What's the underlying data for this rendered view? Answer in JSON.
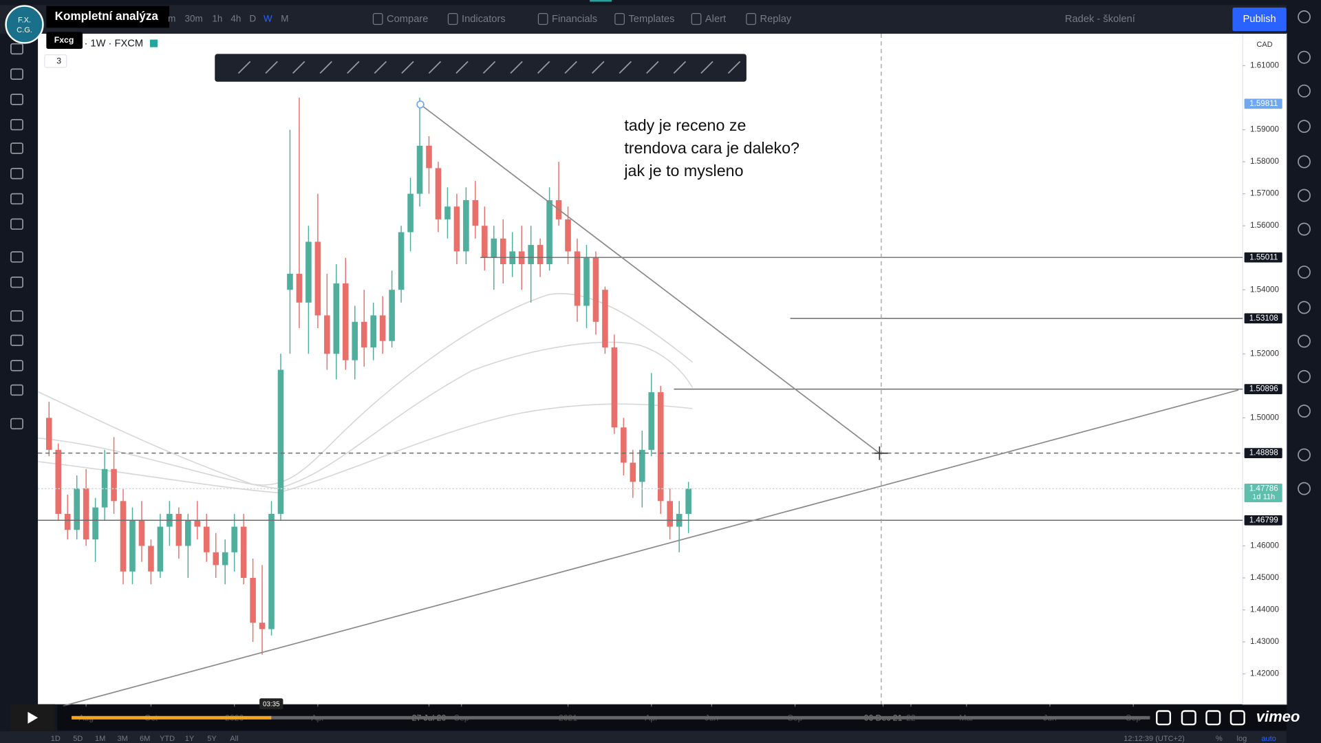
{
  "video": {
    "title": "Kompletní analýza",
    "channel": "Fxcg",
    "logo": [
      "F.X.",
      "C.G."
    ],
    "time": "03:35",
    "brand": "vimeo"
  },
  "toolbar": {
    "intervals": [
      "m",
      "30m",
      "1h",
      "4h",
      "D",
      "W",
      "M"
    ],
    "buttons": [
      "Compare",
      "Indicators",
      "Financials",
      "Templates",
      "Alert",
      "Replay"
    ],
    "layout": "Radek - školení",
    "publish": "Publish"
  },
  "legend": {
    "symbol": "· 1W · FXCM",
    "count": "3"
  },
  "annotation": [
    "tady je receno ze",
    "trendova cara je daleko?",
    "jak je to mysleno"
  ],
  "chart_data": {
    "type": "candlestick",
    "currency": "CAD",
    "open": [
      1.5,
      1.49,
      1.47,
      1.465,
      1.478,
      1.462,
      1.472,
      1.484,
      1.474,
      1.452,
      1.468,
      1.46,
      1.452,
      1.466,
      1.47,
      1.46,
      1.468,
      1.466,
      1.458,
      1.454,
      1.458,
      1.466,
      1.45,
      1.436,
      1.434,
      1.47,
      1.54,
      1.545,
      1.536,
      1.555,
      1.532,
      1.52,
      1.542,
      1.518,
      1.53,
      1.522,
      1.532,
      1.524,
      1.54,
      1.558,
      1.57,
      1.585,
      1.578,
      1.562,
      1.566,
      1.552,
      1.568,
      1.56,
      1.55,
      1.556,
      1.548,
      1.552,
      1.548,
      1.554,
      1.548,
      1.568,
      1.562,
      1.552,
      1.535,
      1.55,
      1.54,
      1.522,
      1.497,
      1.486,
      1.48,
      1.49,
      1.508,
      1.474,
      1.466,
      1.47
    ],
    "high": [
      1.505,
      1.492,
      1.476,
      1.482,
      1.484,
      1.475,
      1.49,
      1.494,
      1.478,
      1.472,
      1.474,
      1.462,
      1.47,
      1.474,
      1.472,
      1.47,
      1.474,
      1.47,
      1.464,
      1.462,
      1.47,
      1.47,
      1.456,
      1.454,
      1.474,
      1.52,
      1.59,
      1.6,
      1.56,
      1.57,
      1.545,
      1.548,
      1.55,
      1.535,
      1.54,
      1.536,
      1.538,
      1.546,
      1.56,
      1.575,
      1.6,
      1.588,
      1.58,
      1.572,
      1.57,
      1.572,
      1.574,
      1.566,
      1.56,
      1.562,
      1.558,
      1.56,
      1.56,
      1.556,
      1.572,
      1.58,
      1.566,
      1.556,
      1.554,
      1.552,
      1.541,
      1.526,
      1.5,
      1.49,
      1.496,
      1.514,
      1.51,
      1.478,
      1.474,
      1.48
    ],
    "low": [
      1.488,
      1.468,
      1.462,
      1.462,
      1.46,
      1.455,
      1.468,
      1.47,
      1.448,
      1.448,
      1.455,
      1.448,
      1.45,
      1.46,
      1.456,
      1.45,
      1.462,
      1.455,
      1.45,
      1.448,
      1.452,
      1.448,
      1.43,
      1.426,
      1.432,
      1.468,
      1.52,
      1.528,
      1.52,
      1.528,
      1.515,
      1.512,
      1.515,
      1.512,
      1.516,
      1.518,
      1.52,
      1.522,
      1.536,
      1.552,
      1.566,
      1.57,
      1.558,
      1.556,
      1.548,
      1.548,
      1.556,
      1.546,
      1.54,
      1.542,
      1.544,
      1.54,
      1.536,
      1.544,
      1.546,
      1.56,
      1.548,
      1.53,
      1.528,
      1.526,
      1.52,
      1.495,
      1.482,
      1.475,
      1.472,
      1.488,
      1.47,
      1.462,
      1.458,
      1.464
    ],
    "close": [
      1.49,
      1.47,
      1.465,
      1.478,
      1.462,
      1.472,
      1.484,
      1.474,
      1.452,
      1.468,
      1.46,
      1.452,
      1.466,
      1.47,
      1.46,
      1.468,
      1.466,
      1.458,
      1.454,
      1.458,
      1.466,
      1.45,
      1.436,
      1.434,
      1.47,
      1.515,
      1.545,
      1.536,
      1.555,
      1.532,
      1.52,
      1.542,
      1.518,
      1.53,
      1.522,
      1.532,
      1.524,
      1.54,
      1.558,
      1.57,
      1.585,
      1.578,
      1.562,
      1.566,
      1.552,
      1.568,
      1.56,
      1.55,
      1.556,
      1.548,
      1.552,
      1.548,
      1.554,
      1.548,
      1.568,
      1.562,
      1.552,
      1.535,
      1.55,
      1.53,
      1.522,
      1.497,
      1.486,
      1.48,
      1.49,
      1.508,
      1.474,
      1.466,
      1.47,
      1.4779
    ],
    "up_color": "#4fae9c",
    "down_color": "#e9706a",
    "xlim": [
      -1.2,
      128.8
    ],
    "ylim": [
      1.41,
      1.62
    ],
    "xticks": [
      {
        "value": 4,
        "label": "Aug"
      },
      {
        "value": 11,
        "label": "Oct"
      },
      {
        "value": 20,
        "label": "2020"
      },
      {
        "value": 29,
        "label": "Apr"
      },
      {
        "value": 41,
        "label": "27 Jul 20"
      },
      {
        "value": 44.5,
        "label": "Sep"
      },
      {
        "value": 56,
        "label": "2021"
      },
      {
        "value": 65,
        "label": "Apr"
      },
      {
        "value": 71.5,
        "label": "Jun"
      },
      {
        "value": 80.5,
        "label": "Sep"
      },
      {
        "value": 90,
        "label": "06 Dec 21"
      },
      {
        "value": 93,
        "label": "22"
      },
      {
        "value": 99,
        "label": "Mar"
      },
      {
        "value": 108,
        "label": "Jun"
      },
      {
        "value": 117,
        "label": "Sep"
      }
    ],
    "yticks": [
      {
        "value": 1.61,
        "label": "1.61000"
      },
      {
        "value": 1.59,
        "label": "1.59000"
      },
      {
        "value": 1.58,
        "label": "1.58000"
      },
      {
        "value": 1.57,
        "label": "1.57000"
      },
      {
        "value": 1.56,
        "label": "1.56000"
      },
      {
        "value": 1.54,
        "label": "1.54000"
      },
      {
        "value": 1.52,
        "label": "1.52000"
      },
      {
        "value": 1.5,
        "label": "1.50000"
      },
      {
        "value": 1.46,
        "label": "1.46000"
      },
      {
        "value": 1.45,
        "label": "1.45000"
      },
      {
        "value": 1.44,
        "label": "1.44000"
      },
      {
        "value": 1.43,
        "label": "1.43000"
      },
      {
        "value": 1.42,
        "label": "1.42000"
      }
    ],
    "price_lines": [
      {
        "value": 1.59811,
        "label": "1.59811",
        "style": "none",
        "color": "#6fa8f0"
      },
      {
        "value": 1.55011,
        "label": "1.55011",
        "style": "solid",
        "color": "#131722"
      },
      {
        "value": 1.53108,
        "label": "1.53108",
        "style": "solid",
        "color": "#131722"
      },
      {
        "value": 1.50896,
        "label": "1.50896",
        "style": "solid",
        "color": "#131722"
      },
      {
        "value": 1.48898,
        "label": "1.48898",
        "style": "dashed",
        "color": "#131722"
      },
      {
        "value": 1.47786,
        "label": "1.47786",
        "style": "dotted",
        "color": "#5fbfae",
        "sub": "1d 11h"
      },
      {
        "value": 1.46799,
        "label": "1.46799",
        "style": "solid",
        "color": "#131722"
      }
    ]
  },
  "range_buttons": [
    "1D",
    "5D",
    "1M",
    "3M",
    "6M",
    "YTD",
    "1Y",
    "5Y",
    "All"
  ],
  "status": {
    "clock": "12:12:39 (UTC+2)",
    "percent": "%",
    "log": "log",
    "auto": "auto"
  }
}
